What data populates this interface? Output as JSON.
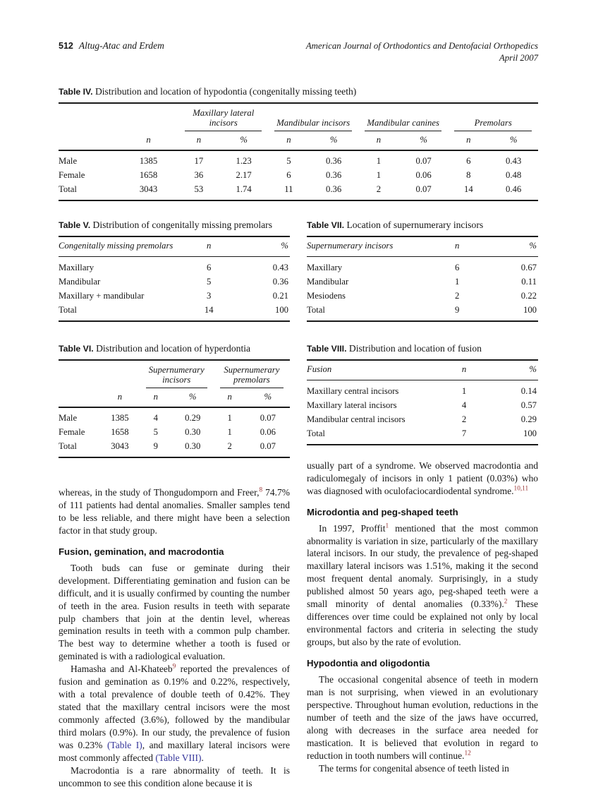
{
  "header": {
    "page_number": "512",
    "running_authors": "Altug-Atac and Erdem",
    "journal_name": "American Journal of Orthodontics and Dentofacial Orthopedics",
    "issue_date": "April 2007"
  },
  "colors": {
    "link_blue": "#333399",
    "citation_red": "#993333"
  },
  "tables": {
    "hypodontia": {
      "label": "Table IV.",
      "title": "Distribution and location of hypodontia (congenitally missing teeth)",
      "lead_header": "n",
      "groups": [
        {
          "name": "Maxillary lateral incisors"
        },
        {
          "name": "Mandibular incisors"
        },
        {
          "name": "Mandibular canines"
        },
        {
          "name": "Premolars"
        }
      ],
      "sub_headers": [
        "n",
        "%"
      ],
      "rows": [
        [
          "Male",
          "1385",
          "17",
          "1.23",
          "5",
          "0.36",
          "1",
          "0.07",
          "6",
          "0.43"
        ],
        [
          "Female",
          "1658",
          "36",
          "2.17",
          "6",
          "0.36",
          "1",
          "0.06",
          "8",
          "0.48"
        ],
        [
          "Total",
          "3043",
          "53",
          "1.74",
          "11",
          "0.36",
          "2",
          "0.07",
          "14",
          "0.46"
        ]
      ]
    },
    "missing_premolars": {
      "label": "Table V.",
      "title": "Distribution of congenitally missing premolars",
      "headers": [
        "Congenitally missing premolars",
        "n",
        "%"
      ],
      "rows": [
        [
          "Maxillary",
          "6",
          "0.43"
        ],
        [
          "Mandibular",
          "5",
          "0.36"
        ],
        [
          "Maxillary + mandibular",
          "3",
          "0.21"
        ],
        [
          "Total",
          "14",
          "100"
        ]
      ]
    },
    "hyperdontia": {
      "label": "Table VI.",
      "title": "Distribution and location of hyperdontia",
      "lead_header": "n",
      "groups": [
        {
          "name": "Supernumerary incisors"
        },
        {
          "name": "Supernumerary premolars"
        }
      ],
      "sub_headers": [
        "n",
        "%"
      ],
      "rows": [
        [
          "Male",
          "1385",
          "4",
          "0.29",
          "1",
          "0.07"
        ],
        [
          "Female",
          "1658",
          "5",
          "0.30",
          "1",
          "0.06"
        ],
        [
          "Total",
          "3043",
          "9",
          "0.30",
          "2",
          "0.07"
        ]
      ]
    },
    "supernumerary_incisors": {
      "label": "Table VII.",
      "title": "Location of supernumerary incisors",
      "headers": [
        "Supernumerary incisors",
        "n",
        "%"
      ],
      "rows": [
        [
          "Maxillary",
          "6",
          "0.67"
        ],
        [
          "Mandibular",
          "1",
          "0.11"
        ],
        [
          "Mesiodens",
          "2",
          "0.22"
        ],
        [
          "Total",
          "9",
          "100"
        ]
      ]
    },
    "fusion": {
      "label": "Table VIII.",
      "title": "Distribution and location of fusion",
      "headers": [
        "Fusion",
        "n",
        "%"
      ],
      "rows": [
        [
          "Maxillary central incisors",
          "1",
          "0.14"
        ],
        [
          "Maxillary lateral incisors",
          "4",
          "0.57"
        ],
        [
          "Mandibular central incisors",
          "2",
          "0.29"
        ],
        [
          "Total",
          "7",
          "100"
        ]
      ]
    }
  },
  "body": {
    "left_column": [
      {
        "type": "paragraph",
        "indent": false,
        "segments": [
          {
            "t": "whereas, in the study of Thongudomporn and Freer,"
          },
          {
            "t": "8",
            "s": "sup"
          },
          {
            "t": " 74.7% of 111 patients had dental anomalies. Smaller samples tend to be less reliable, and there might have been a selection factor in that study group."
          }
        ]
      },
      {
        "type": "heading",
        "text": "Fusion, gemination, and macrodontia"
      },
      {
        "type": "paragraph",
        "indent": true,
        "segments": [
          {
            "t": "Tooth buds can fuse or geminate during their development. Differentiating gemination and fusion can be difficult, and it is usually confirmed by counting the number of teeth in the area. Fusion results in teeth with separate pulp chambers that join at the dentin level, whereas gemination results in teeth with a common pulp chamber. The best way to determine whether a tooth is fused or geminated is with a radiological evaluation."
          }
        ]
      },
      {
        "type": "paragraph",
        "indent": true,
        "segments": [
          {
            "t": "Hamasha and Al-Khateeb"
          },
          {
            "t": "9",
            "s": "sup"
          },
          {
            "t": " reported the prevalences of fusion and gemination as 0.19% and 0.22%, respectively, with a total prevalence of double teeth of 0.42%. They stated that the maxillary central incisors were the most commonly affected (3.6%), followed by the mandibular third molars (0.9%). In our study, the prevalence of fusion was 0.23% "
          },
          {
            "t": "(Table I)",
            "s": "link"
          },
          {
            "t": ", and maxillary lateral incisors were most commonly affected "
          },
          {
            "t": "(Table VIII)",
            "s": "link"
          },
          {
            "t": "."
          }
        ]
      },
      {
        "type": "paragraph",
        "indent": true,
        "segments": [
          {
            "t": "Macrodontia is a rare abnormality of teeth. It is uncommon to see this condition alone because it is"
          }
        ]
      }
    ],
    "right_column": [
      {
        "type": "paragraph",
        "indent": false,
        "segments": [
          {
            "t": "usually part of a syndrome. We observed macrodontia and radiculomegaly of incisors in only 1 patient (0.03%) who was diagnosed with oculofaciocardiodental syndrome."
          },
          {
            "t": "10,11",
            "s": "sup"
          }
        ]
      },
      {
        "type": "heading",
        "text": "Microdontia and peg-shaped teeth"
      },
      {
        "type": "paragraph",
        "indent": true,
        "segments": [
          {
            "t": "In 1997, Proffit"
          },
          {
            "t": "1",
            "s": "sup"
          },
          {
            "t": " mentioned that the most common abnormality is variation in size, particularly of the maxillary lateral incisors. In our study, the prevalence of peg-shaped maxillary lateral incisors was 1.51%, making it the second most frequent dental anomaly. Surprisingly, in a study published almost 50 years ago, peg-shaped teeth were a small minority of dental anomalies (0.33%)."
          },
          {
            "t": "2",
            "s": "sup"
          },
          {
            "t": " These differences over time could be explained not only by local environmental factors and criteria in selecting the study groups, but also by the rate of evolution."
          }
        ]
      },
      {
        "type": "heading",
        "text": "Hypodontia and oligodontia"
      },
      {
        "type": "paragraph",
        "indent": true,
        "segments": [
          {
            "t": "The occasional congenital absence of teeth in modern man is not surprising, when viewed in an evolutionary perspective. Throughout human evolution, reductions in the number of teeth and the size of the jaws have occurred, along with decreases in the surface area needed for mastication. It is believed that evolution in regard to reduction in tooth numbers will continue."
          },
          {
            "t": "12",
            "s": "sup"
          }
        ]
      },
      {
        "type": "paragraph",
        "indent": true,
        "segments": [
          {
            "t": "The terms for congenital absence of teeth listed in"
          }
        ]
      }
    ]
  }
}
